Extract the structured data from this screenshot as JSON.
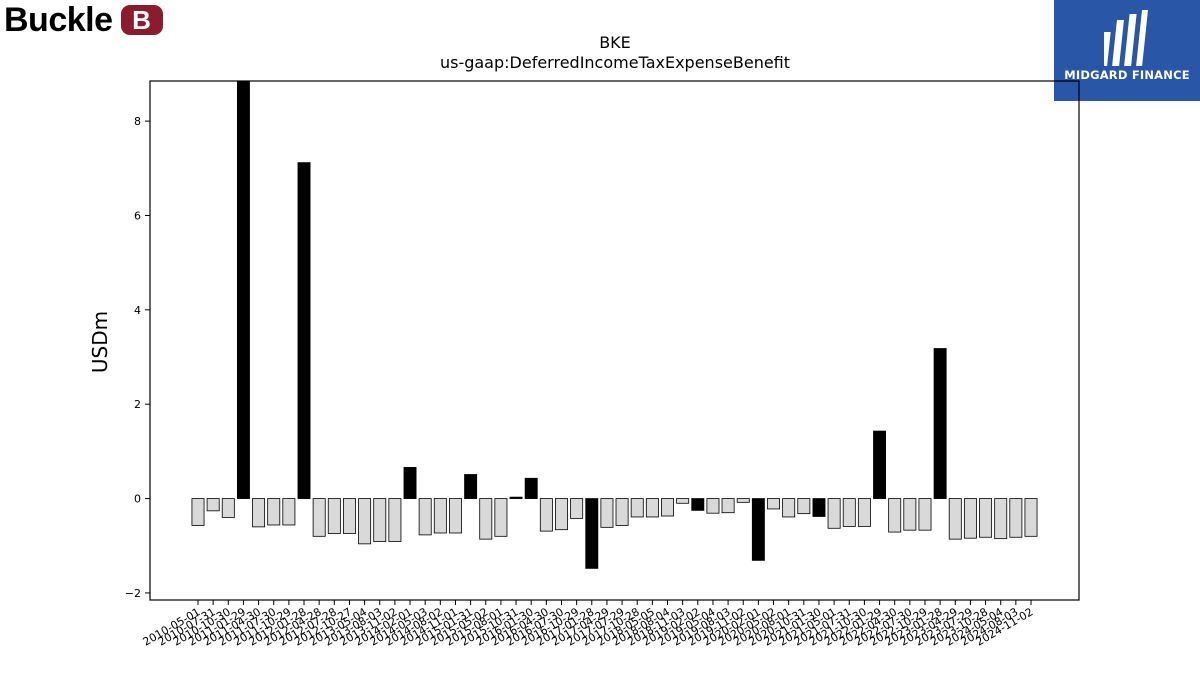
{
  "brand": {
    "logo_text": "Buckle",
    "logo_mark": "B"
  },
  "watermark": {
    "text": "MIDGARD FINANCE"
  },
  "chart_data": {
    "type": "bar",
    "title": "BKE",
    "subtitle": "us-gaap:DeferredIncomeTaxExpenseBenefit",
    "ylabel": "USDm",
    "xlabel": "",
    "ylim": [
      -2.15,
      8.85
    ],
    "yticks": [
      -2,
      0,
      2,
      4,
      6,
      8
    ],
    "yticks_labels": [
      "−2",
      "0",
      "2",
      "4",
      "6",
      "8"
    ],
    "grid": false,
    "colors": {
      "annual": "#000000",
      "quarterly": "#d9d9d9",
      "edge": "#000000"
    },
    "categories": [
      "2010-05-01",
      "2010-07-31",
      "2010-10-30",
      "2011-01-29",
      "2011-04-30",
      "2011-07-30",
      "2011-10-29",
      "2012-01-28",
      "2012-04-28",
      "2012-07-28",
      "2012-10-27",
      "2013-05-04",
      "2013-08-03",
      "2013-11-02",
      "2014-02-01",
      "2014-05-03",
      "2014-08-02",
      "2014-11-01",
      "2015-01-31",
      "2015-05-02",
      "2015-08-01",
      "2015-10-31",
      "2016-01-30",
      "2016-04-30",
      "2016-07-30",
      "2016-10-29",
      "2017-01-28",
      "2017-04-29",
      "2017-07-29",
      "2017-10-28",
      "2018-05-05",
      "2018-08-04",
      "2018-11-03",
      "2019-02-02",
      "2019-05-04",
      "2019-08-03",
      "2019-11-02",
      "2020-02-01",
      "2020-05-02",
      "2020-08-01",
      "2020-10-31",
      "2021-01-30",
      "2021-05-01",
      "2021-07-31",
      "2021-10-30",
      "2022-01-29",
      "2022-04-30",
      "2022-07-30",
      "2022-10-29",
      "2023-01-28",
      "2023-04-29",
      "2023-07-29",
      "2023-10-28",
      "2024-05-04",
      "2024-08-03",
      "2024-11-02"
    ],
    "tick_labels": [
      "2010-05-01",
      "2010-07-31",
      "2010-10-30",
      "2011-01-29",
      "2011-04-30",
      "2011-07-30",
      "2011-10-29",
      "2012-01-28",
      "2012-04-28",
      "2012-07-28",
      "2012-10-27",
      "2013-05-04",
      "2013-08-03",
      "2013-11-02",
      "2014-02-01",
      "2014-05-03",
      "2014-08-02",
      "2014-11-01",
      "2015-01-31",
      "2015-05-02",
      "2015-08-01",
      "2015-10-31",
      "2016-01-30",
      "2016-04-30",
      "2016-07-30",
      "2016-10-29",
      "2017-01-28",
      "2017-04-29",
      "2017-07-29",
      "2017-10-28",
      "2018-05-05",
      "2018-08-04",
      "2018-11-03",
      "2019-02-02",
      "2019-05-04",
      "2019-08-03",
      "2019-11-02",
      "2020-02-01",
      "2020-05-02",
      "2020-08-01",
      "2020-10-31",
      "2021-01-30",
      "2021-05-01",
      "2021-07-31",
      "2021-10-30",
      "2022-01-29",
      "2022-04-30",
      "2022-07-30",
      "2022-10-29",
      "2023-01-28",
      "2023-04-29",
      "2023-07-29",
      "2023-10-28",
      "2024-05-04",
      "2024-08-03",
      "2024-11-02"
    ],
    "values": [
      -0.57,
      -0.26,
      -0.4,
      8.85,
      -0.6,
      -0.56,
      -0.56,
      7.12,
      -0.8,
      -0.74,
      -0.74,
      -0.96,
      -0.91,
      -0.91,
      0.66,
      -0.77,
      -0.73,
      -0.73,
      0.51,
      -0.86,
      -0.8,
      0.03,
      0.43,
      -0.69,
      -0.66,
      -0.42,
      -1.48,
      -0.61,
      -0.57,
      -0.39,
      -0.39,
      -0.37,
      -0.1,
      -0.25,
      -0.31,
      -0.3,
      -0.08,
      -1.31,
      -0.22,
      -0.39,
      -0.32,
      -0.38,
      -0.63,
      -0.59,
      -0.59,
      1.43,
      -0.71,
      -0.67,
      -0.67,
      3.18,
      -0.86,
      -0.84,
      -0.82,
      -0.85,
      -0.82,
      -0.8
    ],
    "annual": [
      false,
      false,
      false,
      true,
      false,
      false,
      false,
      true,
      false,
      false,
      false,
      false,
      false,
      false,
      true,
      false,
      false,
      false,
      true,
      false,
      false,
      true,
      true,
      false,
      false,
      false,
      true,
      false,
      false,
      false,
      false,
      false,
      false,
      true,
      false,
      false,
      false,
      true,
      false,
      false,
      false,
      true,
      false,
      false,
      false,
      true,
      false,
      false,
      false,
      true,
      false,
      false,
      false,
      false,
      false,
      false
    ]
  }
}
